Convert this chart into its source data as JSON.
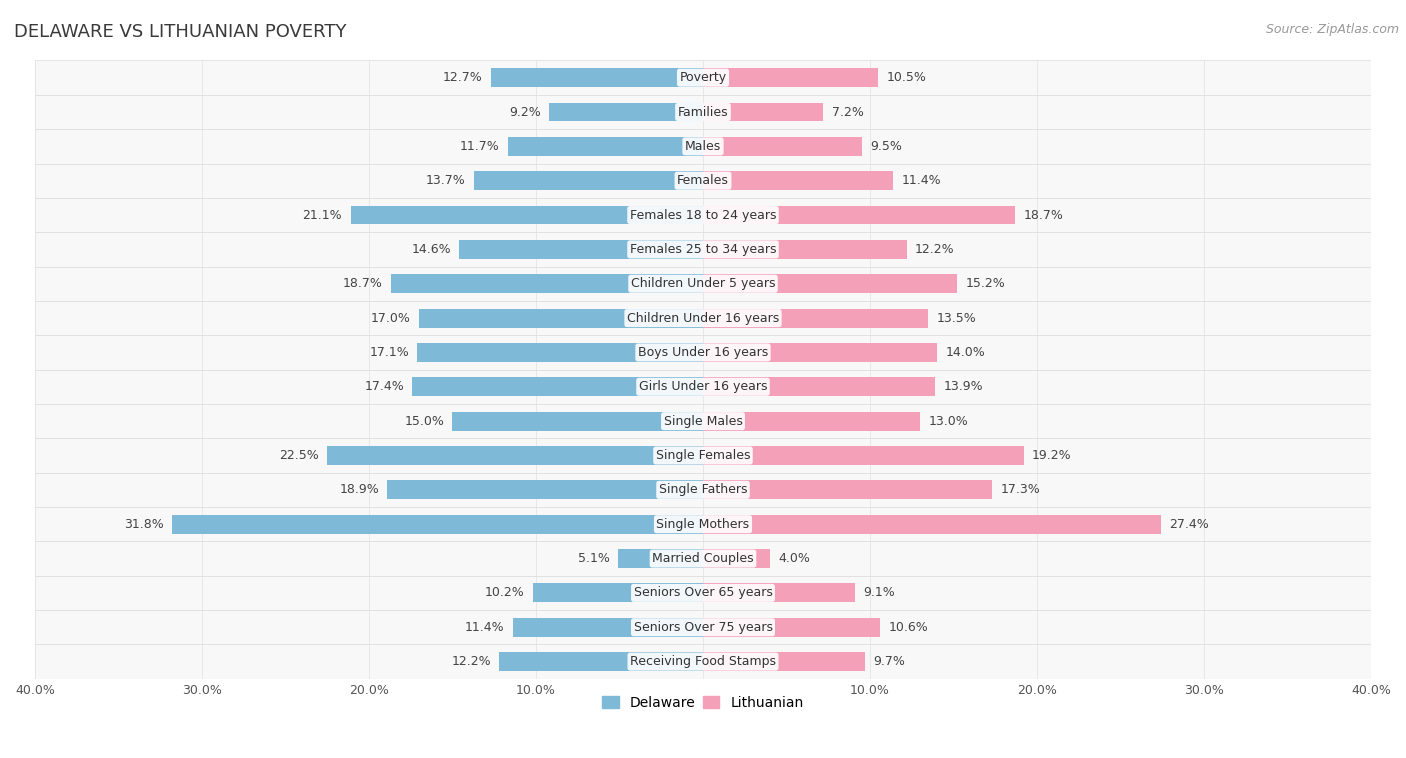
{
  "title": "DELAWARE VS LITHUANIAN POVERTY",
  "source": "Source: ZipAtlas.com",
  "categories": [
    "Poverty",
    "Families",
    "Males",
    "Females",
    "Females 18 to 24 years",
    "Females 25 to 34 years",
    "Children Under 5 years",
    "Children Under 16 years",
    "Boys Under 16 years",
    "Girls Under 16 years",
    "Single Males",
    "Single Females",
    "Single Fathers",
    "Single Mothers",
    "Married Couples",
    "Seniors Over 65 years",
    "Seniors Over 75 years",
    "Receiving Food Stamps"
  ],
  "delaware_values": [
    12.7,
    9.2,
    11.7,
    13.7,
    21.1,
    14.6,
    18.7,
    17.0,
    17.1,
    17.4,
    15.0,
    22.5,
    18.9,
    31.8,
    5.1,
    10.2,
    11.4,
    12.2
  ],
  "lithuanian_values": [
    10.5,
    7.2,
    9.5,
    11.4,
    18.7,
    12.2,
    15.2,
    13.5,
    14.0,
    13.9,
    13.0,
    19.2,
    17.3,
    27.4,
    4.0,
    9.1,
    10.6,
    9.7
  ],
  "delaware_color": "#7eb9d8",
  "lithuanian_color": "#f4a0b8",
  "background_color": "#ffffff",
  "row_bg_color": "#ffffff",
  "row_separator_color": "#dcdcdc",
  "outer_border_color": "#cccccc",
  "xlim": 40.0,
  "title_fontsize": 13,
  "source_fontsize": 9,
  "bar_label_fontsize": 9,
  "category_fontsize": 9,
  "legend_fontsize": 10,
  "axis_label_fontsize": 9
}
